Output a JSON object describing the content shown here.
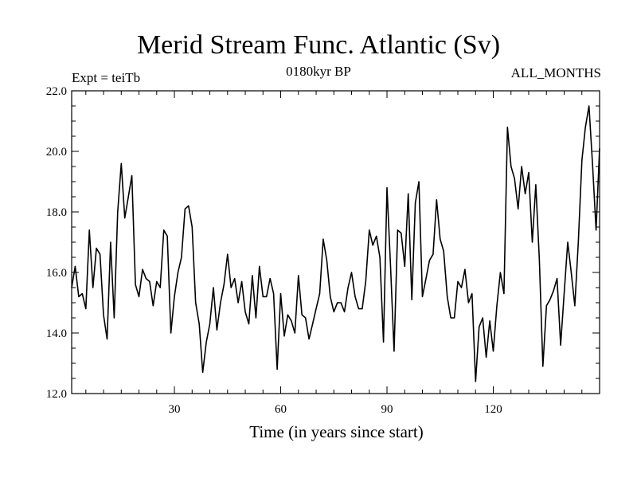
{
  "chart_data": {
    "type": "line",
    "title": "Merid Stream Func. Atlantic (Sv)",
    "left_label": "Expt = teiTb",
    "center_label": "0180kyr BP",
    "right_label": "ALL_MONTHS",
    "xlabel": "Time (in years since start)",
    "ylabel": "",
    "xlim": [
      1,
      150
    ],
    "ylim": [
      12.0,
      22.0
    ],
    "xticks": [
      30,
      60,
      90,
      120
    ],
    "yticks": [
      12.0,
      14.0,
      16.0,
      18.0,
      20.0,
      22.0
    ],
    "ytick_labels": [
      "12.0",
      "14.0",
      "16.0",
      "18.0",
      "20.0",
      "22.0"
    ],
    "grid": false,
    "line_color": "#000000",
    "series": [
      {
        "values": [
          15.5,
          16.2,
          15.2,
          15.3,
          14.8,
          17.4,
          15.5,
          16.8,
          16.6,
          14.6,
          13.8,
          17.0,
          14.5,
          18.0,
          19.6,
          17.8,
          18.5,
          19.2,
          15.6,
          15.2,
          16.1,
          15.8,
          15.7,
          14.9,
          15.7,
          15.5,
          17.4,
          17.2,
          14.0,
          15.2,
          16.0,
          16.5,
          18.1,
          18.2,
          17.5,
          15.0,
          14.3,
          12.7,
          13.7,
          14.3,
          15.5,
          14.1,
          15.0,
          15.6,
          16.6,
          15.5,
          15.8,
          15.0,
          15.7,
          14.7,
          14.3,
          15.9,
          14.5,
          16.2,
          15.2,
          15.2,
          15.8,
          15.3,
          12.8,
          15.3,
          13.9,
          14.6,
          14.4,
          14.0,
          15.9,
          14.6,
          14.5,
          13.8,
          14.3,
          14.8,
          15.3,
          17.1,
          16.4,
          15.2,
          14.7,
          15.0,
          15.0,
          14.7,
          15.5,
          16.0,
          15.2,
          14.8,
          14.8,
          15.7,
          17.4,
          16.9,
          17.2,
          16.5,
          13.7,
          18.8,
          16.2,
          13.4,
          17.4,
          17.3,
          16.2,
          18.6,
          15.1,
          18.3,
          19.0,
          15.2,
          15.8,
          16.4,
          16.6,
          18.4,
          17.1,
          16.7,
          15.2,
          14.5,
          14.5,
          15.7,
          15.5,
          16.1,
          15.0,
          15.3,
          12.4,
          14.2,
          14.5,
          13.2,
          14.4,
          13.4,
          14.9,
          16.0,
          15.3,
          20.8,
          19.5,
          19.1,
          18.1,
          19.5,
          18.6,
          19.3,
          17.0,
          18.9,
          16.4,
          12.9,
          14.9,
          15.1,
          15.4,
          15.8,
          13.6,
          15.3,
          17.0,
          16.0,
          14.9,
          17.0,
          19.7,
          20.8,
          21.5,
          19.6,
          17.4,
          20.1
        ]
      }
    ]
  }
}
